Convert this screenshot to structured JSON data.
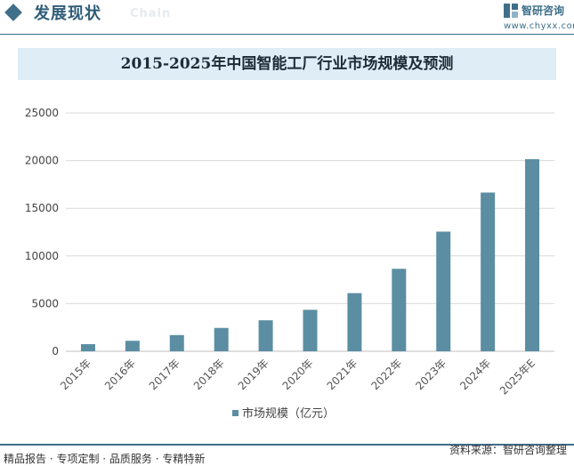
{
  "header": {
    "section_title": "发展现状",
    "section_subtitle": "Chain",
    "brand_name": "智研咨询",
    "brand_url": "www.chyxx.com"
  },
  "footer": {
    "tags": "精品报告 · 专项定制 · 品质服务 · 专精特新",
    "source": "资料来源：智研咨询整理"
  },
  "colors": {
    "bar": "#5b8ea3",
    "accent": "#3f6f89",
    "title_band": "#deedf6",
    "grid": "#d9d9d9"
  },
  "chart_data": {
    "type": "bar",
    "title": "2015-2025年中国智能工厂行业市场规模及预测",
    "categories": [
      "2015年",
      "2016年",
      "2017年",
      "2018年",
      "2019年",
      "2020年",
      "2021年",
      "2022年",
      "2023年",
      "2024年",
      "2025年E"
    ],
    "series": [
      {
        "name": "市场规模（亿元）",
        "values": [
          750,
          1100,
          1700,
          2450,
          3250,
          4350,
          6100,
          8650,
          12550,
          16650,
          20150
        ]
      }
    ],
    "ylim": [
      0,
      25000
    ],
    "yticks": [
      0,
      5000,
      10000,
      15000,
      20000,
      25000
    ],
    "grid": true,
    "legend_position": "bottom"
  }
}
